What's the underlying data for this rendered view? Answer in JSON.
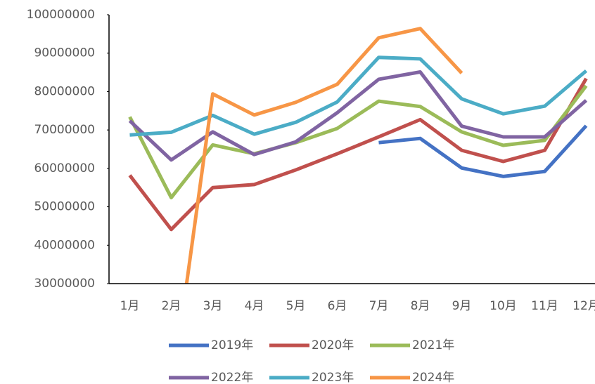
{
  "chart_data": {
    "type": "line",
    "categories": [
      "1月",
      "2月",
      "3月",
      "4月",
      "5月",
      "6月",
      "7月",
      "8月",
      "9月",
      "10月",
      "11月",
      "12月"
    ],
    "series": [
      {
        "name": "2019年",
        "color": "#4472c4",
        "values": [
          null,
          null,
          null,
          null,
          null,
          null,
          66700000,
          67800000,
          60100000,
          57900000,
          59200000,
          71100000
        ]
      },
      {
        "name": "2020年",
        "color": "#c0504d",
        "values": [
          58200000,
          44100000,
          55000000,
          55800000,
          59600000,
          63800000,
          68200000,
          72700000,
          64700000,
          61800000,
          64700000,
          83400000
        ]
      },
      {
        "name": "2021年",
        "color": "#9bbb59",
        "values": [
          73400000,
          52400000,
          66100000,
          63800000,
          66700000,
          70400000,
          77500000,
          76100000,
          69500000,
          66000000,
          67300000,
          81500000
        ]
      },
      {
        "name": "2022年",
        "color": "#8064a2",
        "values": [
          72400000,
          62200000,
          69500000,
          63600000,
          66900000,
          74500000,
          83200000,
          85100000,
          71000000,
          68200000,
          68200000,
          77700000
        ]
      },
      {
        "name": "2023年",
        "color": "#4bacc6",
        "values": [
          68700000,
          69400000,
          73800000,
          68900000,
          72000000,
          77300000,
          88900000,
          88500000,
          78100000,
          74200000,
          76200000,
          85400000
        ]
      },
      {
        "name": "2024年",
        "color": "#f79646",
        "values": [
          null,
          1000000,
          79400000,
          73900000,
          77200000,
          81900000,
          94000000,
          96400000,
          84800000,
          null,
          null,
          null
        ]
      }
    ],
    "ylim": [
      30000000,
      100000000
    ],
    "yticks": [
      30000000,
      40000000,
      50000000,
      60000000,
      70000000,
      80000000,
      90000000,
      100000000
    ],
    "grid": false,
    "legend": "bottom"
  }
}
